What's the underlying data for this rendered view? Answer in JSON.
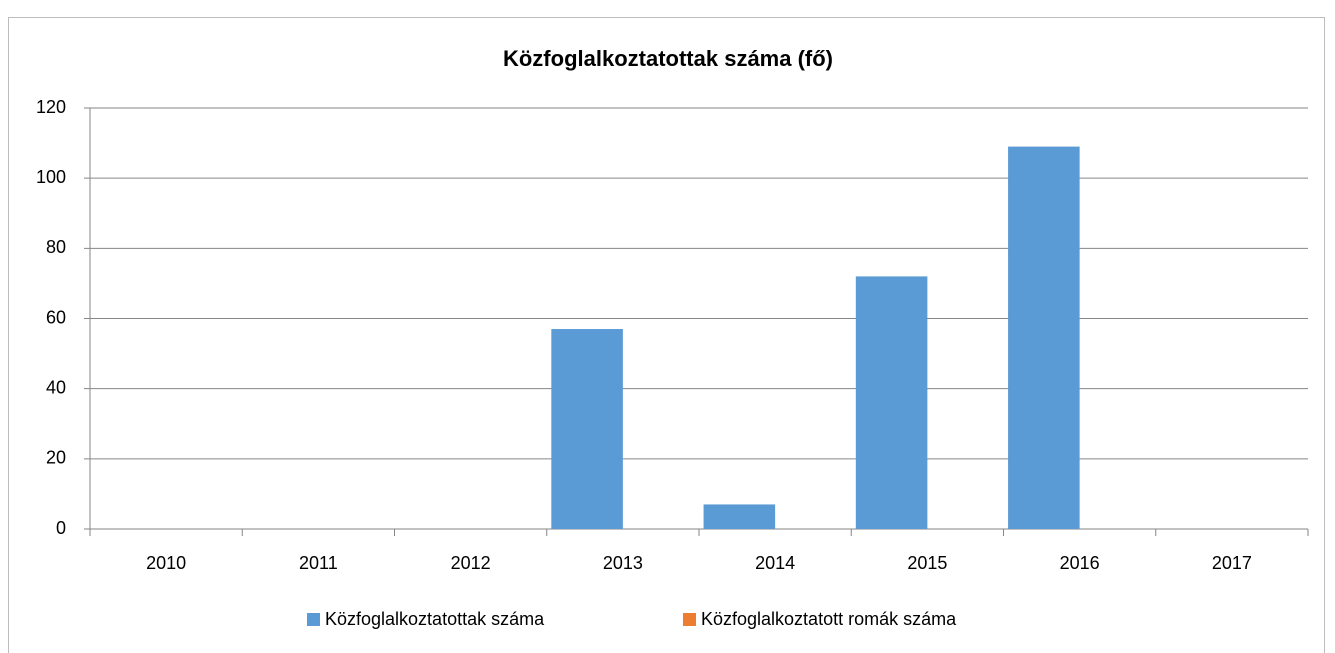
{
  "chart_data": {
    "type": "bar",
    "title": "Közfoglalkoztatottak száma (fő)",
    "categories": [
      "2010",
      "2011",
      "2012",
      "2013",
      "2014",
      "2015",
      "2016",
      "2017"
    ],
    "series": [
      {
        "name": "Közfoglalkoztatottak száma",
        "color": "#5b9bd5",
        "values": [
          null,
          null,
          null,
          57,
          7,
          72,
          109,
          null
        ]
      },
      {
        "name": "Közfoglalkoztatott romák száma",
        "color": "#ed7d31",
        "values": [
          null,
          null,
          null,
          null,
          null,
          null,
          null,
          null
        ]
      }
    ],
    "ylim": [
      0,
      120
    ],
    "yticks": [
      0,
      20,
      40,
      60,
      80,
      100,
      120
    ],
    "grid": true,
    "legend": "bottom"
  }
}
